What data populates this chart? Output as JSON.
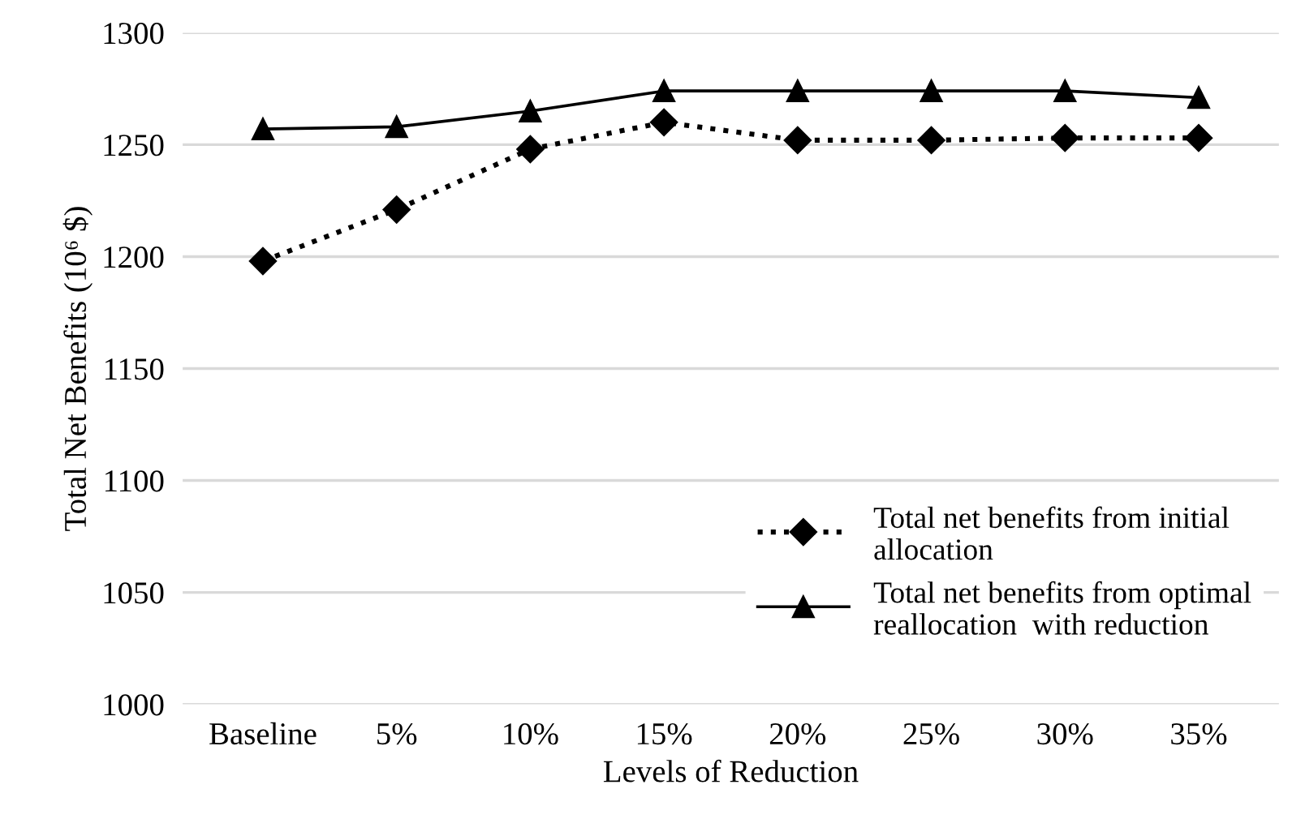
{
  "chart_data": {
    "type": "line",
    "xlabel": "Levels of Reduction",
    "ylabel": "Total Net Benefits (10⁶ $)",
    "categories": [
      "Baseline",
      "5%",
      "10%",
      "15%",
      "20%",
      "25%",
      "30%",
      "35%"
    ],
    "series": [
      {
        "name": "Total net benefits from initial allocation",
        "color": "#000000",
        "marker": "diamond",
        "line_style": "dotted",
        "values": [
          1198,
          1221,
          1248,
          1260,
          1252,
          1252,
          1253,
          1253
        ]
      },
      {
        "name": "Total net benefits from optimal reallocation  with reduction",
        "color": "#000000",
        "marker": "triangle",
        "line_style": "solid",
        "values": [
          1257,
          1258,
          1265,
          1274,
          1274,
          1274,
          1274,
          1271
        ]
      }
    ],
    "ylim": [
      1000,
      1300
    ],
    "yticks": [
      1000,
      1050,
      1100,
      1150,
      1200,
      1250,
      1300
    ],
    "grid": "y",
    "legend": "bottom right"
  }
}
